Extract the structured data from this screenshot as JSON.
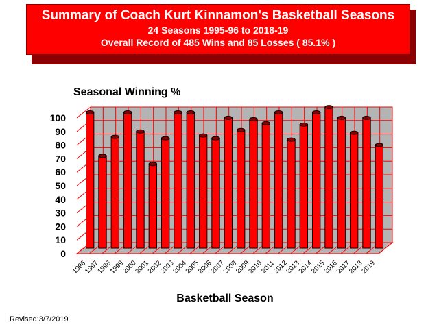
{
  "header": {
    "title": "Summary of Coach Kurt Kinnamon's Basketball Seasons",
    "subtitle1": "24 Seasons   1995-96 to 2018-19",
    "subtitle2": "Overall Record of 485 Wins and 85 Losses ( 85.1% )"
  },
  "footer": {
    "revised": "Revised:3/7/2019"
  },
  "colors": {
    "bar": "#ff0000",
    "frame": "#ff0000",
    "wall": "#b4b4b4",
    "title_bg": "#ff0000"
  },
  "chart_data": {
    "type": "bar",
    "title": "Seasonal Winning %",
    "xlabel": "Basketball Season",
    "ylabel": "",
    "ylim": [
      0,
      100
    ],
    "yticks": [
      0,
      10,
      20,
      30,
      40,
      50,
      60,
      70,
      80,
      90,
      100
    ],
    "grid": true,
    "categories": [
      "1996",
      "1997",
      "1998",
      "1999",
      "2000",
      "2001",
      "2002",
      "2003",
      "2004",
      "2005",
      "2006",
      "2007",
      "2008",
      "2009",
      "2010",
      "2011",
      "2012",
      "2013",
      "2014",
      "2015",
      "2016",
      "2017",
      "2018",
      "2019"
    ],
    "values": [
      100,
      68,
      82,
      100,
      86,
      62,
      81,
      100,
      100,
      83,
      81,
      96,
      87,
      95,
      92,
      100,
      80,
      91,
      100,
      104,
      96,
      85,
      96,
      76
    ]
  }
}
